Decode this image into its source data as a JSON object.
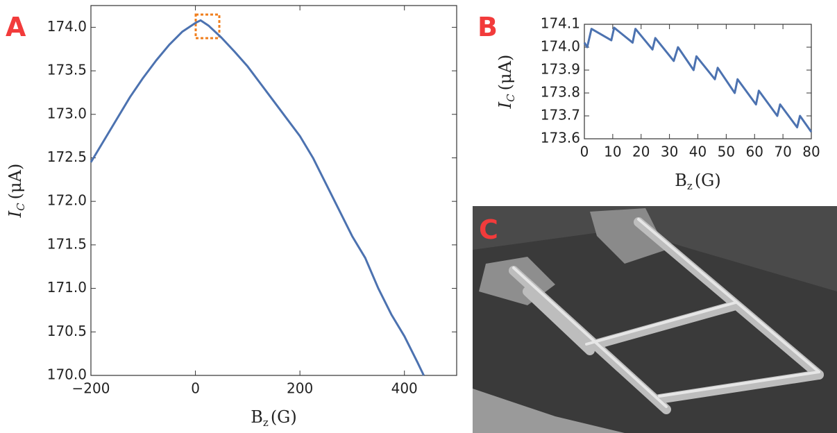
{
  "chart_data": [
    {
      "type": "line",
      "panel": "A",
      "xlabel": "B",
      "xlabel_sub": "z",
      "xlabel_unit": "(G)",
      "ylabel": "I",
      "ylabel_sub": "C",
      "ylabel_unit": "(μA)",
      "x": [
        -200,
        -175,
        -150,
        -125,
        -100,
        -75,
        -50,
        -25,
        0,
        10,
        25,
        50,
        75,
        100,
        125,
        150,
        175,
        200,
        225,
        250,
        275,
        300,
        325,
        350,
        375,
        400,
        425,
        437
      ],
      "values": [
        172.45,
        172.7,
        172.95,
        173.2,
        173.42,
        173.62,
        173.8,
        173.95,
        174.05,
        174.08,
        174.02,
        173.88,
        173.72,
        173.55,
        173.35,
        173.15,
        172.95,
        172.75,
        172.5,
        172.2,
        171.9,
        171.6,
        171.35,
        171.0,
        170.7,
        170.45,
        170.15,
        170.0
      ],
      "color": "#4c72b0",
      "xlim": [
        -200,
        500
      ],
      "xticks": [
        {
          "value": -200,
          "label": "−200"
        },
        0,
        200,
        400
      ],
      "ylim": [
        170,
        174.25
      ],
      "yticks": [
        {
          "value": 170,
          "label": "170.0"
        },
        170.5,
        {
          "value": 171,
          "label": "171.0"
        },
        171.5,
        {
          "value": 172,
          "label": "172.0"
        },
        172.5,
        {
          "value": 173,
          "label": "173.0"
        },
        173.5,
        {
          "value": 174,
          "label": "174.0"
        }
      ]
    },
    {
      "type": "line",
      "panel": "B",
      "xlabel": "B",
      "xlabel_sub": "z",
      "xlabel_unit": "(G)",
      "ylabel": "I",
      "ylabel_sub": "C",
      "ylabel_unit": "(μA)",
      "x": [
        0,
        1,
        2.5,
        9.5,
        10.5,
        17,
        18,
        24,
        25,
        31.5,
        33,
        38.5,
        39.5,
        46,
        47,
        53,
        54,
        60.5,
        61.5,
        68,
        69,
        75,
        76,
        80
      ],
      "values": [
        174.02,
        174.0,
        174.08,
        174.03,
        174.085,
        174.02,
        174.08,
        173.99,
        174.04,
        173.94,
        174.0,
        173.9,
        173.96,
        173.86,
        173.91,
        173.8,
        173.86,
        173.75,
        173.81,
        173.7,
        173.75,
        173.65,
        173.7,
        173.63
      ],
      "color": "#4c72b0",
      "xlim": [
        0,
        80
      ],
      "xticks": [
        0,
        10,
        20,
        30,
        40,
        50,
        60,
        70,
        80
      ],
      "ylim": [
        173.6,
        174.1
      ],
      "yticks": [
        173.6,
        173.7,
        173.8,
        173.9,
        {
          "value": 174,
          "label": "174.0"
        },
        174.1
      ]
    }
  ],
  "image": {
    "panel": "C"
  }
}
